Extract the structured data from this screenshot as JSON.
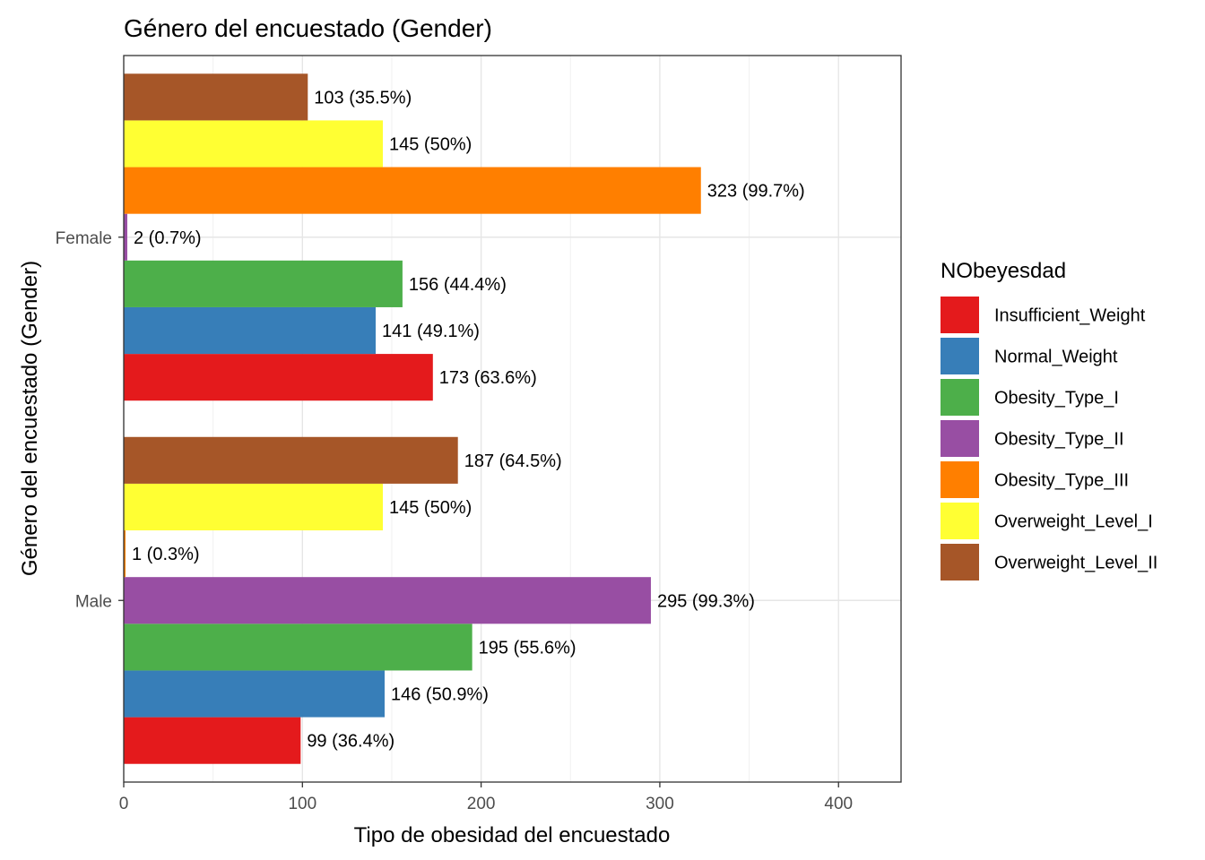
{
  "chart_data": {
    "type": "bar",
    "orientation": "horizontal",
    "title": "Género del encuestado (Gender)",
    "xlabel": "Tipo de obesidad del encuestado",
    "ylabel": "Género del encuestado (Gender)",
    "xlim": [
      0,
      435
    ],
    "xticks": [
      0,
      100,
      200,
      300,
      400
    ],
    "categories": [
      "Male",
      "Female"
    ],
    "grid": true,
    "legend": {
      "title": "NObeyesdad",
      "position": "right"
    },
    "series": [
      {
        "name": "Insufficient_Weight",
        "color": "#E41A1C",
        "values": [
          99,
          173
        ],
        "labels": [
          "99 (36.4%)",
          "173 (63.6%)"
        ]
      },
      {
        "name": "Normal_Weight",
        "color": "#377EB8",
        "values": [
          146,
          141
        ],
        "labels": [
          "146 (50.9%)",
          "141 (49.1%)"
        ]
      },
      {
        "name": "Obesity_Type_I",
        "color": "#4DAF4A",
        "values": [
          195,
          156
        ],
        "labels": [
          "195 (55.6%)",
          "156 (44.4%)"
        ]
      },
      {
        "name": "Obesity_Type_II",
        "color": "#984EA3",
        "values": [
          295,
          2
        ],
        "labels": [
          "295 (99.3%)",
          "2 (0.7%)"
        ]
      },
      {
        "name": "Obesity_Type_III",
        "color": "#FF7F00",
        "values": [
          1,
          323
        ],
        "labels": [
          "1 (0.3%)",
          "323 (99.7%)"
        ]
      },
      {
        "name": "Overweight_Level_I",
        "color": "#FFFF33",
        "values": [
          145,
          145
        ],
        "labels": [
          "145 (50%)",
          "145 (50%)"
        ]
      },
      {
        "name": "Overweight_Level_II",
        "color": "#A65628",
        "values": [
          187,
          103
        ],
        "labels": [
          "187 (64.5%)",
          "103 (35.5%)"
        ]
      }
    ]
  }
}
